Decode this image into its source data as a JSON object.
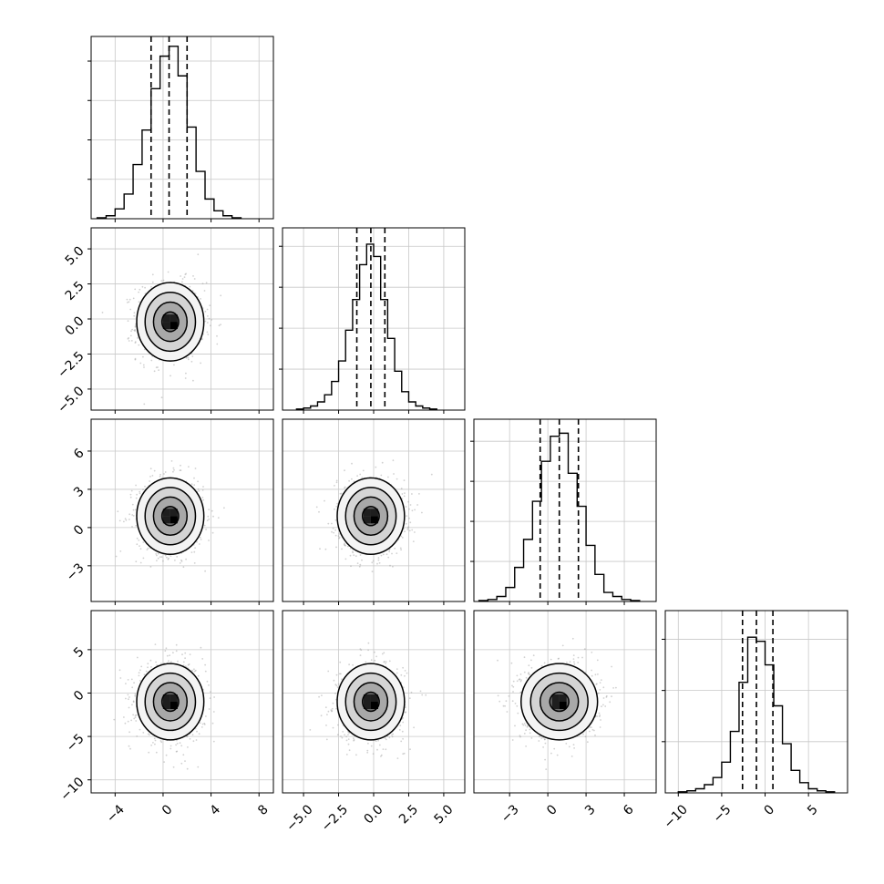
{
  "chart_data": {
    "type": "corner",
    "title": "",
    "grid": true,
    "parameters": [
      {
        "range": [
          -6,
          9.2
        ],
        "ticks": [
          -4,
          0,
          4,
          8
        ],
        "tick_labels": [
          "−4",
          "0",
          "4",
          "8"
        ],
        "quantiles": [
          -1.0,
          0.5,
          2.0
        ],
        "hist": {
          "bin_edges": [
            -5.5,
            -4.75,
            -4.0,
            -3.25,
            -2.5,
            -1.75,
            -1.0,
            -0.25,
            0.5,
            1.25,
            2.0,
            2.75,
            3.5,
            4.25,
            5.0,
            5.75,
            6.5
          ],
          "counts": [
            1,
            3,
            10,
            25,
            55,
            90,
            132,
            165,
            175,
            145,
            93,
            48,
            20,
            8,
            3,
            1
          ],
          "ymax": 185,
          "ygrid": [
            40,
            80,
            120,
            160
          ]
        }
      },
      {
        "range": [
          -6.5,
          6.5
        ],
        "ticks": [
          -5.0,
          -2.5,
          0.0,
          2.5,
          5.0
        ],
        "tick_labels": [
          "−5.0",
          "−2.5",
          "0.0",
          "2.5",
          "5.0"
        ],
        "quantiles": [
          -1.2,
          -0.2,
          0.8
        ],
        "hist": {
          "bin_edges": [
            -5.5,
            -5.0,
            -4.5,
            -4.0,
            -3.5,
            -3.0,
            -2.5,
            -2.0,
            -1.5,
            -1.0,
            -0.5,
            0.0,
            0.5,
            1.0,
            1.5,
            2.0,
            2.5,
            3.0,
            3.5,
            4.0,
            4.5
          ],
          "counts": [
            1,
            2,
            4,
            8,
            15,
            28,
            48,
            78,
            108,
            142,
            162,
            150,
            108,
            70,
            38,
            18,
            8,
            4,
            2,
            1
          ],
          "ymax": 178,
          "ygrid": [
            40,
            80,
            120,
            160
          ]
        }
      },
      {
        "range": [
          -5.8,
          8.5
        ],
        "ticks": [
          -3,
          0,
          3,
          6
        ],
        "tick_labels": [
          "−3",
          "0",
          "3",
          "6"
        ],
        "quantiles": [
          -0.6,
          0.9,
          2.4
        ],
        "hist": {
          "bin_edges": [
            -5.4,
            -4.7,
            -4.0,
            -3.3,
            -2.6,
            -1.9,
            -1.2,
            -0.5,
            0.2,
            0.9,
            1.6,
            2.3,
            3.0,
            3.7,
            4.4,
            5.1,
            5.8,
            6.5,
            7.2
          ],
          "counts": [
            1,
            2,
            5,
            14,
            34,
            62,
            100,
            140,
            165,
            168,
            128,
            95,
            56,
            27,
            9,
            5,
            2,
            1
          ],
          "ymax": 182,
          "ygrid": [
            40,
            80,
            120,
            160
          ]
        }
      },
      {
        "range": [
          -11.5,
          9.5
        ],
        "ticks": [
          -10,
          -5,
          0,
          5
        ],
        "tick_labels": [
          "−10",
          "−5",
          "0",
          "5"
        ],
        "quantiles": [
          -2.6,
          -1.0,
          0.9
        ],
        "hist": {
          "bin_edges": [
            -10.0,
            -9.0,
            -8.0,
            -7.0,
            -6.0,
            -5.0,
            -4.0,
            -3.0,
            -2.0,
            -1.0,
            0.0,
            1.0,
            2.0,
            3.0,
            4.0,
            5.0,
            6.0,
            7.0,
            8.0
          ],
          "counts": [
            1,
            2,
            4,
            8,
            15,
            30,
            60,
            108,
            152,
            148,
            125,
            85,
            48,
            22,
            10,
            4,
            2,
            1
          ],
          "ymax": 178,
          "ygrid": [
            50,
            100,
            150
          ]
        }
      }
    ],
    "pairs": [
      {
        "i": 1,
        "j": 0,
        "center": [
          0.6,
          -0.2
        ],
        "sigma": [
          1.4,
          1.4
        ],
        "yticks": [
          -5.0,
          -2.5,
          0.0,
          2.5,
          5.0
        ],
        "ytick_labels": [
          "−5.0",
          "−2.5",
          "0.0",
          "2.5",
          "5.0"
        ]
      },
      {
        "i": 2,
        "j": 0,
        "center": [
          0.6,
          0.9
        ],
        "sigma": [
          1.4,
          1.5
        ],
        "yticks": [
          -3,
          0,
          3,
          6
        ],
        "ytick_labels": [
          "−3",
          "0",
          "3",
          "6"
        ]
      },
      {
        "i": 2,
        "j": 1,
        "center": [
          -0.2,
          0.9
        ],
        "sigma": [
          1.2,
          1.5
        ],
        "yticks": [],
        "ytick_labels": []
      },
      {
        "i": 3,
        "j": 0,
        "center": [
          0.6,
          -1.0
        ],
        "sigma": [
          1.4,
          2.2
        ],
        "yticks": [
          -10,
          -5,
          0,
          5
        ],
        "ytick_labels": [
          "−10",
          "−5",
          "0",
          "5"
        ]
      },
      {
        "i": 3,
        "j": 1,
        "center": [
          -0.2,
          -1.0
        ],
        "sigma": [
          1.2,
          2.2
        ],
        "yticks": [],
        "ytick_labels": []
      },
      {
        "i": 3,
        "j": 2,
        "center": [
          0.9,
          -1.0
        ],
        "sigma": [
          1.5,
          2.2
        ],
        "yticks": [],
        "ytick_labels": []
      }
    ],
    "contour_levels_sigma": [
      0.5,
      1.0,
      1.5,
      2.0
    ]
  }
}
